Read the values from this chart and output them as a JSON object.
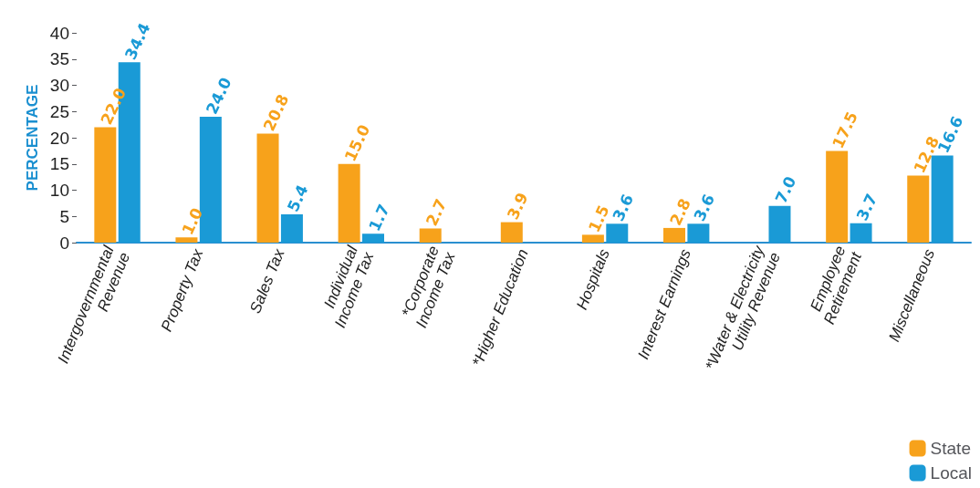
{
  "chart_data": {
    "type": "bar",
    "ylabel": "PERCENTAGE",
    "categories": [
      "Intergovernmental\nRevenue",
      "Property Tax",
      "Sales Tax",
      "Individual\nIncome Tax",
      "*Corporate\nIncome Tax",
      "*Higher Education",
      "Hospitals",
      "Interest Earnings",
      "*Water & Electricity\nUtility Revenue",
      "Employee\nRetirement",
      "Miscellaneous"
    ],
    "series": [
      {
        "name": "State",
        "color": "#f7a21b",
        "values": [
          22.0,
          1.0,
          20.8,
          15.0,
          2.7,
          3.9,
          1.5,
          2.8,
          null,
          17.5,
          12.8
        ],
        "value_labels": [
          "22.0",
          "1.0",
          "20.8",
          "15.0",
          "2.7",
          "3.9",
          "1.5",
          "2.8",
          null,
          "17.5",
          "12.8"
        ]
      },
      {
        "name": "Local",
        "color": "#1a9ad6",
        "values": [
          34.4,
          24.0,
          5.4,
          1.7,
          null,
          null,
          3.6,
          3.6,
          7.0,
          3.7,
          16.6
        ],
        "value_labels": [
          "34.4",
          "24.0",
          "5.4",
          "1.7",
          null,
          null,
          "3.6",
          "3.6",
          "7.0",
          "3.7",
          "16.6"
        ]
      }
    ],
    "ylim": [
      0,
      40
    ],
    "yticks": [
      0,
      5,
      10,
      15,
      20,
      25,
      30,
      35,
      40
    ],
    "grid": false,
    "legend": "bottom right"
  }
}
